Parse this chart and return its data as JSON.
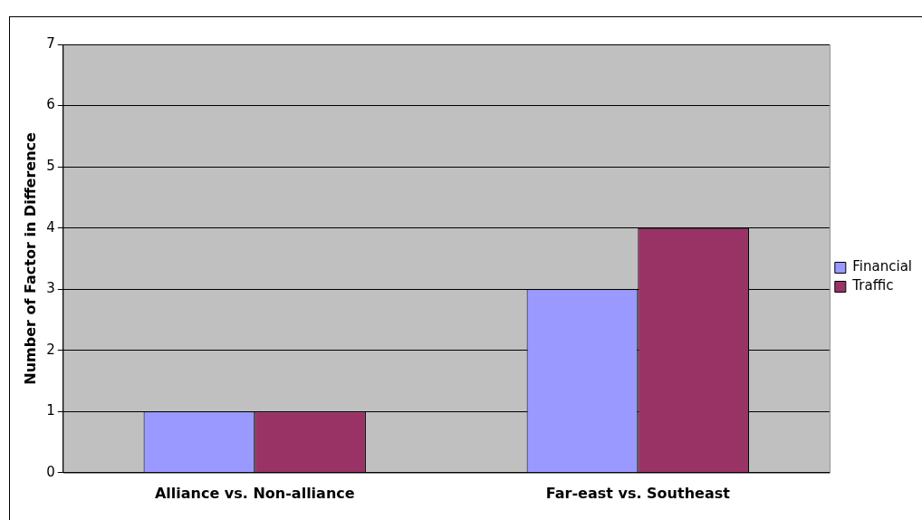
{
  "chart_data": {
    "type": "bar",
    "ylabel": "Number of Factor in Difference",
    "categories": [
      "Alliance vs. Non-alliance",
      "Far-east vs. Southeast"
    ],
    "series": [
      {
        "name": "Financial",
        "color": "#9999ff",
        "values": [
          1,
          3
        ]
      },
      {
        "name": "Traffic",
        "color": "#993366",
        "values": [
          1,
          4
        ]
      }
    ],
    "ylim": [
      0,
      7
    ],
    "yticks": [
      0,
      1,
      2,
      3,
      4,
      5,
      6,
      7
    ],
    "grid": "y",
    "legend": "right"
  }
}
